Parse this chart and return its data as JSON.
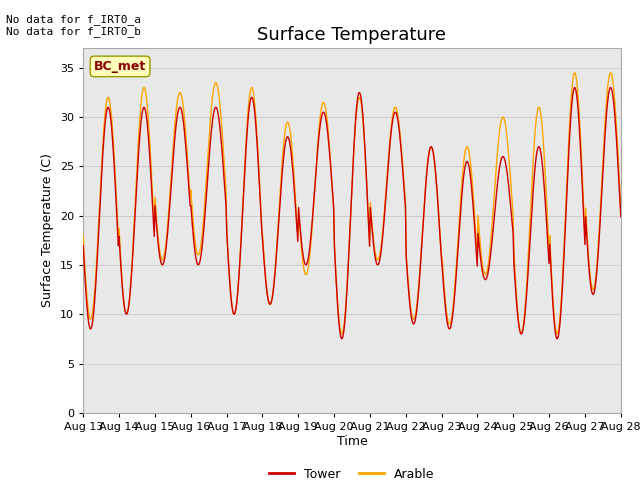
{
  "title": "Surface Temperature",
  "xlabel": "Time",
  "ylabel": "Surface Temperature (C)",
  "ylim": [
    0,
    37
  ],
  "yticks": [
    0,
    5,
    10,
    15,
    20,
    25,
    30,
    35
  ],
  "tower_color": "#cc0000",
  "arable_color": "#ffa500",
  "bc_met_box_facecolor": "#ffffbb",
  "bc_met_box_edgecolor": "#999900",
  "bc_met_text_color": "#8b0000",
  "annotation_lines": [
    "No data for f_IRT0_a",
    "No data for f_IRT0_b"
  ],
  "legend_labels": [
    "Tower",
    "Arable"
  ],
  "grid_color": "#cccccc",
  "bg_color": "#e8e8e8",
  "title_fontsize": 13,
  "label_fontsize": 9,
  "tick_fontsize": 8,
  "days": 15,
  "start_day": 13,
  "n_per_day": 48,
  "day_maxes_tower": [
    31,
    31,
    31,
    31,
    32,
    28,
    30.5,
    32.5,
    30.5,
    27,
    25.5,
    26,
    27,
    33,
    33
  ],
  "day_maxes_arable": [
    32,
    33,
    32.5,
    33.5,
    33,
    29.5,
    31.5,
    32,
    31,
    27,
    27,
    30,
    31,
    34.5,
    34.5
  ],
  "day_mins_tower": [
    8.5,
    10,
    15,
    15,
    10,
    11,
    15,
    7.5,
    15,
    9,
    8.5,
    13.5,
    8,
    7.5,
    12
  ],
  "day_mins_arable": [
    9.5,
    10,
    15.5,
    16,
    10,
    11,
    14,
    8,
    15.5,
    9.5,
    9,
    14,
    8,
    8,
    12.5
  ]
}
